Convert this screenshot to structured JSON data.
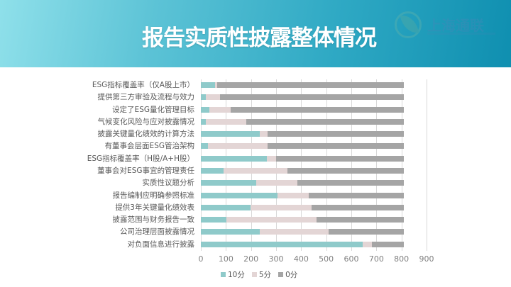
{
  "header": {
    "title": "报告实质性披露整体情况",
    "logo_text": "上海通联"
  },
  "colors": {
    "ten": "#8fcaca",
    "five": "#e3d5d5",
    "zero": "#a5a5a5",
    "header_start": "#8fe0ea",
    "header_end": "#0f8fb0"
  },
  "chart_data": {
    "type": "bar",
    "orientation": "horizontal",
    "stacked": true,
    "title": "报告实质性披露整体情况",
    "xlabel": "",
    "ylabel": "",
    "xlim": [
      0,
      900
    ],
    "x_ticks": [
      "0",
      "100",
      "200",
      "300",
      "400",
      "500",
      "600",
      "700",
      "800",
      "900"
    ],
    "grid": true,
    "legend_position": "bottom",
    "categories": [
      "ESG指标覆盖率（仅A股上市）",
      "提供第三方审验及流程与效力",
      "设定了ESG量化管理目标",
      "气候变化风险与应对披露情况",
      "披露关键量化绩效的计算方法",
      "有董事会层面ESG管治架构",
      "ESG指标覆盖率（H股/A+H股）",
      "董事会对ESG事宜的管理责任",
      "实质性议题分析",
      "报告编制应明确参照标准",
      "提供3年关键量化绩效表",
      "披露范围与财务报告一致",
      "公司治理层面披露情况",
      "对负面信息进行披露"
    ],
    "series": [
      {
        "name": "10分",
        "values": [
          57,
          19,
          33,
          19,
          236,
          28,
          262,
          90,
          222,
          305,
          198,
          102,
          234,
          645
        ]
      },
      {
        "name": "5分",
        "values": [
          8,
          58,
          85,
          162,
          30,
          238,
          38,
          256,
          162,
          125,
          244,
          360,
          275,
          37
        ]
      },
      {
        "name": "0分",
        "values": [
          744,
          732,
          691,
          628,
          543,
          543,
          509,
          463,
          425,
          379,
          367,
          347,
          300,
          127
        ]
      }
    ]
  }
}
